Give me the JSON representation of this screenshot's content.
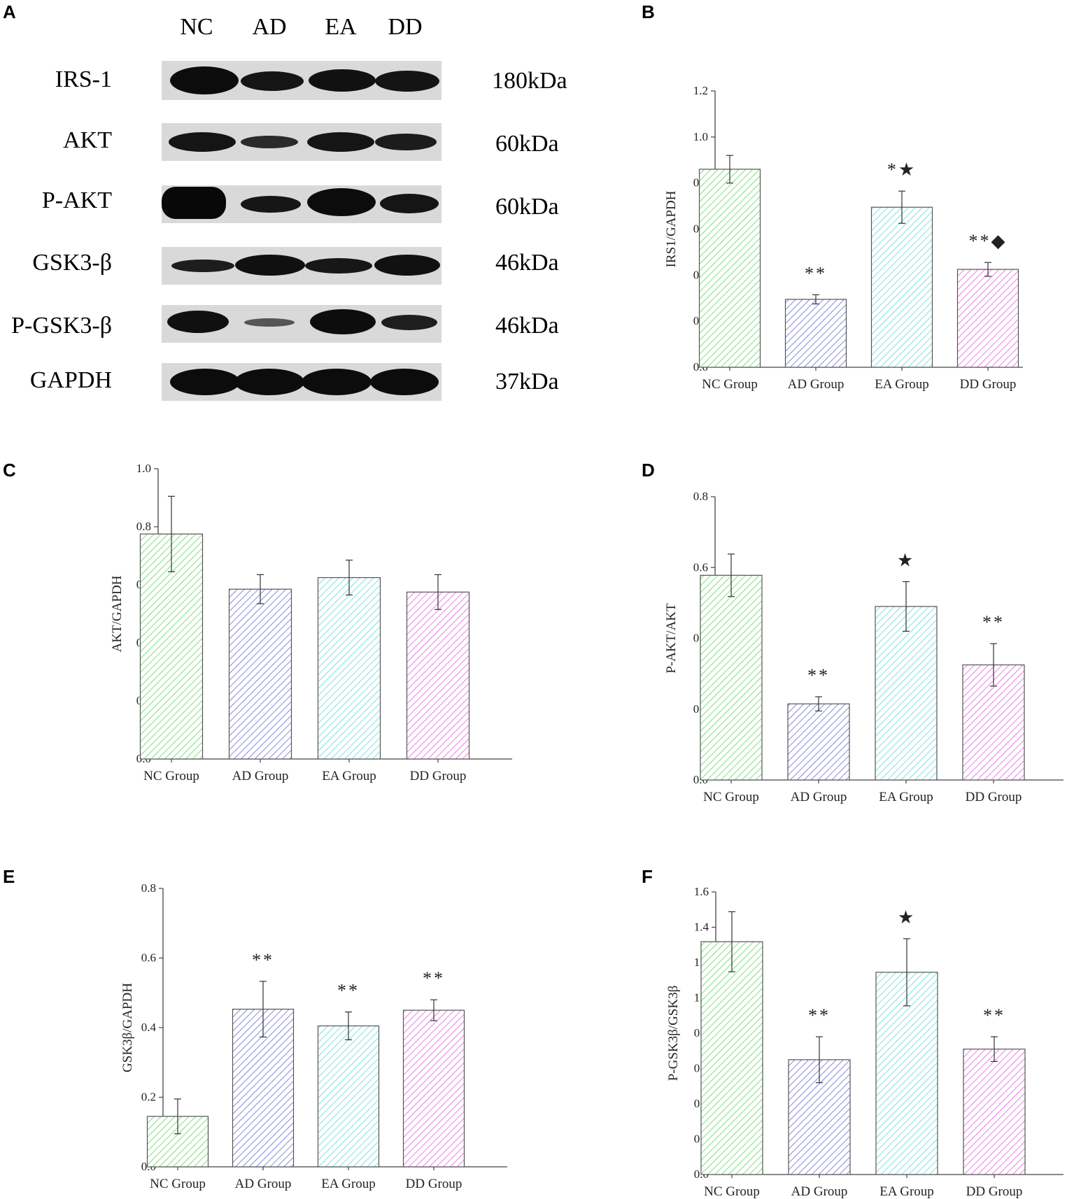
{
  "panels": {
    "a": "A",
    "b": "B",
    "c": "C",
    "d": "D",
    "e": "E",
    "f": "F"
  },
  "blot": {
    "lane_headers": [
      "NC",
      "AD",
      "EA",
      "DD"
    ],
    "rows": [
      {
        "label": "IRS-1",
        "kda": "180kDa"
      },
      {
        "label": "AKT",
        "kda": "60kDa"
      },
      {
        "label": "P-AKT",
        "kda": "60kDa"
      },
      {
        "label": "GSK3-β",
        "kda": "46kDa"
      },
      {
        "label": "P-GSK3-β",
        "kda": "46kDa"
      },
      {
        "label": "GAPDH",
        "kda": "37kDa"
      }
    ]
  },
  "colors": {
    "nc": "#5fd65f",
    "ad": "#6b6bd0",
    "ea": "#5fd8d8",
    "dd": "#e35fe3"
  },
  "chart_data": [
    {
      "panel": "B",
      "type": "bar",
      "categories": [
        "NC Group",
        "AD Group",
        "EA Group",
        "DD Group"
      ],
      "values": [
        0.86,
        0.295,
        0.695,
        0.425
      ],
      "errors": [
        0.06,
        0.02,
        0.07,
        0.03
      ],
      "annotations": [
        "",
        "**",
        "*★",
        "**◆"
      ],
      "ylabel": "IRS1/GAPDH",
      "ylim": [
        0,
        1.2
      ],
      "yticks": [
        "0.0",
        "0.2",
        "0.4",
        "0.6",
        "0.8",
        "1.0",
        "1.2"
      ]
    },
    {
      "panel": "C",
      "type": "bar",
      "categories": [
        "NC Group",
        "AD Group",
        "EA Group",
        "DD Group"
      ],
      "values": [
        0.775,
        0.585,
        0.625,
        0.575
      ],
      "errors": [
        0.13,
        0.05,
        0.06,
        0.06
      ],
      "annotations": [
        "",
        "",
        "",
        ""
      ],
      "ylabel": "AKT/GAPDH",
      "ylim": [
        0,
        1.0
      ],
      "yticks": [
        "0.0",
        "0.2",
        "0.4",
        "0.6",
        "0.8",
        "1.0"
      ]
    },
    {
      "panel": "D",
      "type": "bar",
      "categories": [
        "NC Group",
        "AD Group",
        "EA Group",
        "DD Group"
      ],
      "values": [
        0.578,
        0.215,
        0.49,
        0.325
      ],
      "errors": [
        0.06,
        0.02,
        0.07,
        0.06
      ],
      "annotations": [
        "",
        "**",
        "★",
        "**"
      ],
      "ylabel": "P-AKT/AKT",
      "ylim": [
        0,
        0.8
      ],
      "yticks": [
        "0.0",
        "0.2",
        "0.4",
        "0.6",
        "0.8"
      ]
    },
    {
      "panel": "E",
      "type": "bar",
      "categories": [
        "NC Group",
        "AD Group",
        "EA Group",
        "DD Group"
      ],
      "values": [
        0.145,
        0.453,
        0.405,
        0.45
      ],
      "errors": [
        0.05,
        0.08,
        0.04,
        0.03
      ],
      "annotations": [
        "",
        "**",
        "**",
        "**"
      ],
      "ylabel": "GSK3β/GAPDH",
      "ylim": [
        0,
        0.8
      ],
      "yticks": [
        "0.0",
        "0.2",
        "0.4",
        "0.6",
        "0.8"
      ]
    },
    {
      "panel": "F",
      "type": "bar",
      "categories": [
        "NC Group",
        "AD Group",
        "EA Group",
        "DD Group"
      ],
      "values": [
        1.318,
        0.65,
        1.145,
        0.71
      ],
      "errors": [
        0.17,
        0.13,
        0.19,
        0.07
      ],
      "annotations": [
        "",
        "**",
        "★",
        "**"
      ],
      "ylabel": "P-GSK3β/GSK3β",
      "ylim": [
        0,
        1.6
      ],
      "yticks": [
        "0.0",
        "0.2",
        "0.4",
        "0.6",
        "0.8",
        "1.0",
        "1.2",
        "1.4",
        "1.6"
      ]
    }
  ]
}
